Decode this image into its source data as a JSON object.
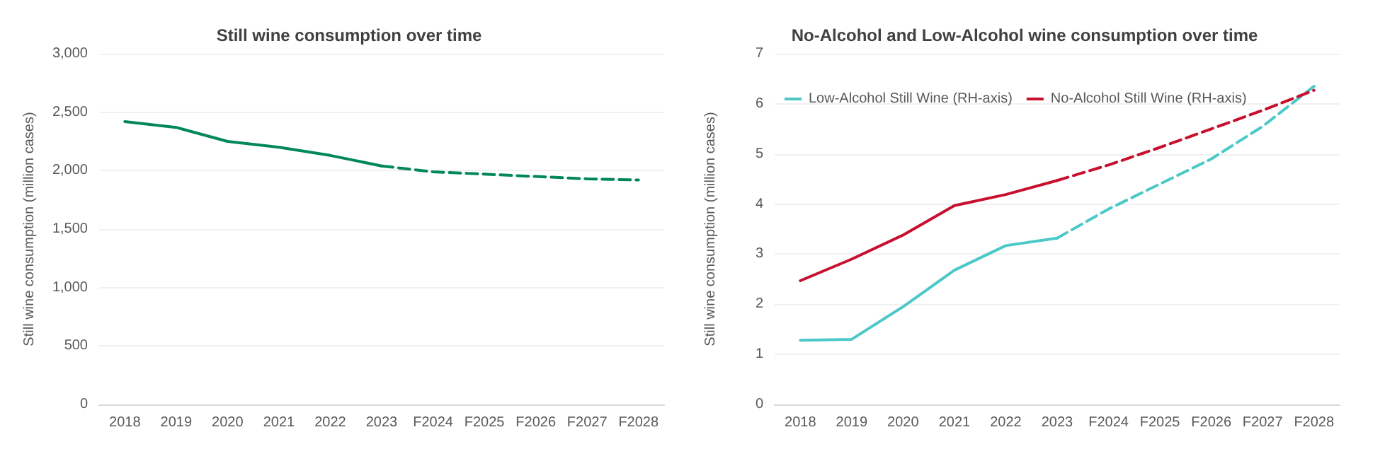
{
  "chart_data": [
    {
      "type": "line",
      "title": "Still wine consumption over time",
      "ylabel": "Still wine consumption (million cases)",
      "categories": [
        "2018",
        "2019",
        "2020",
        "2021",
        "2022",
        "2023",
        "F2024",
        "F2025",
        "F2026",
        "F2027",
        "F2028"
      ],
      "series": [
        {
          "color": "#00875a",
          "line_style": "solid",
          "values": [
            2420,
            2370,
            2250,
            2200,
            2130,
            2040,
            null,
            null,
            null,
            null,
            null
          ]
        },
        {
          "color": "#00875a",
          "line_style": "dashed",
          "values": [
            null,
            null,
            null,
            null,
            null,
            2040,
            1990,
            1970,
            1950,
            1930,
            1920
          ]
        }
      ],
      "ylim": [
        0,
        3000
      ],
      "yticks": [
        {
          "value": 0,
          "label": "0"
        },
        {
          "value": 500,
          "label": "500"
        },
        {
          "value": 1000,
          "label": "1,000"
        },
        {
          "value": 1500,
          "label": "1,500"
        },
        {
          "value": 2000,
          "label": "2,000"
        },
        {
          "value": 2500,
          "label": "2,500"
        },
        {
          "value": 3000,
          "label": "3,000"
        }
      ],
      "grid": "y",
      "legend": false,
      "marker": "none"
    },
    {
      "type": "line",
      "title": "No-Alcohol and Low-Alcohol wine consumption over time",
      "ylabel": "Still wine consumption (million cases)",
      "categories": [
        "2018",
        "2019",
        "2020",
        "2021",
        "2022",
        "2023",
        "F2024",
        "F2025",
        "F2026",
        "F2027",
        "F2028"
      ],
      "series": [
        {
          "name": "Low-Alcohol Still Wine (RH-axis)",
          "color": "#4cc8c8",
          "line_style": "solid",
          "values": [
            1.28,
            1.3,
            1.95,
            2.68,
            3.17,
            3.32,
            null,
            null,
            null,
            null,
            null
          ]
        },
        {
          "color": "#4cc8c8",
          "line_style": "dashed",
          "values": [
            null,
            null,
            null,
            null,
            null,
            3.32,
            3.9,
            4.4,
            4.9,
            5.55,
            6.35
          ]
        },
        {
          "name": "No-Alcohol Still Wine (RH-axis)",
          "color": "#c8102e",
          "line_style": "solid",
          "values": [
            2.47,
            2.9,
            3.38,
            3.97,
            4.19,
            4.47,
            null,
            null,
            null,
            null,
            null
          ]
        },
        {
          "color": "#c8102e",
          "line_style": "dashed",
          "values": [
            null,
            null,
            null,
            null,
            null,
            4.47,
            4.78,
            5.13,
            5.5,
            5.87,
            6.27
          ]
        }
      ],
      "ylim": [
        0,
        7
      ],
      "yticks": [
        0,
        1,
        2,
        3,
        4,
        5,
        6,
        7
      ],
      "grid": "y",
      "legend": "top",
      "marker": "none"
    }
  ]
}
